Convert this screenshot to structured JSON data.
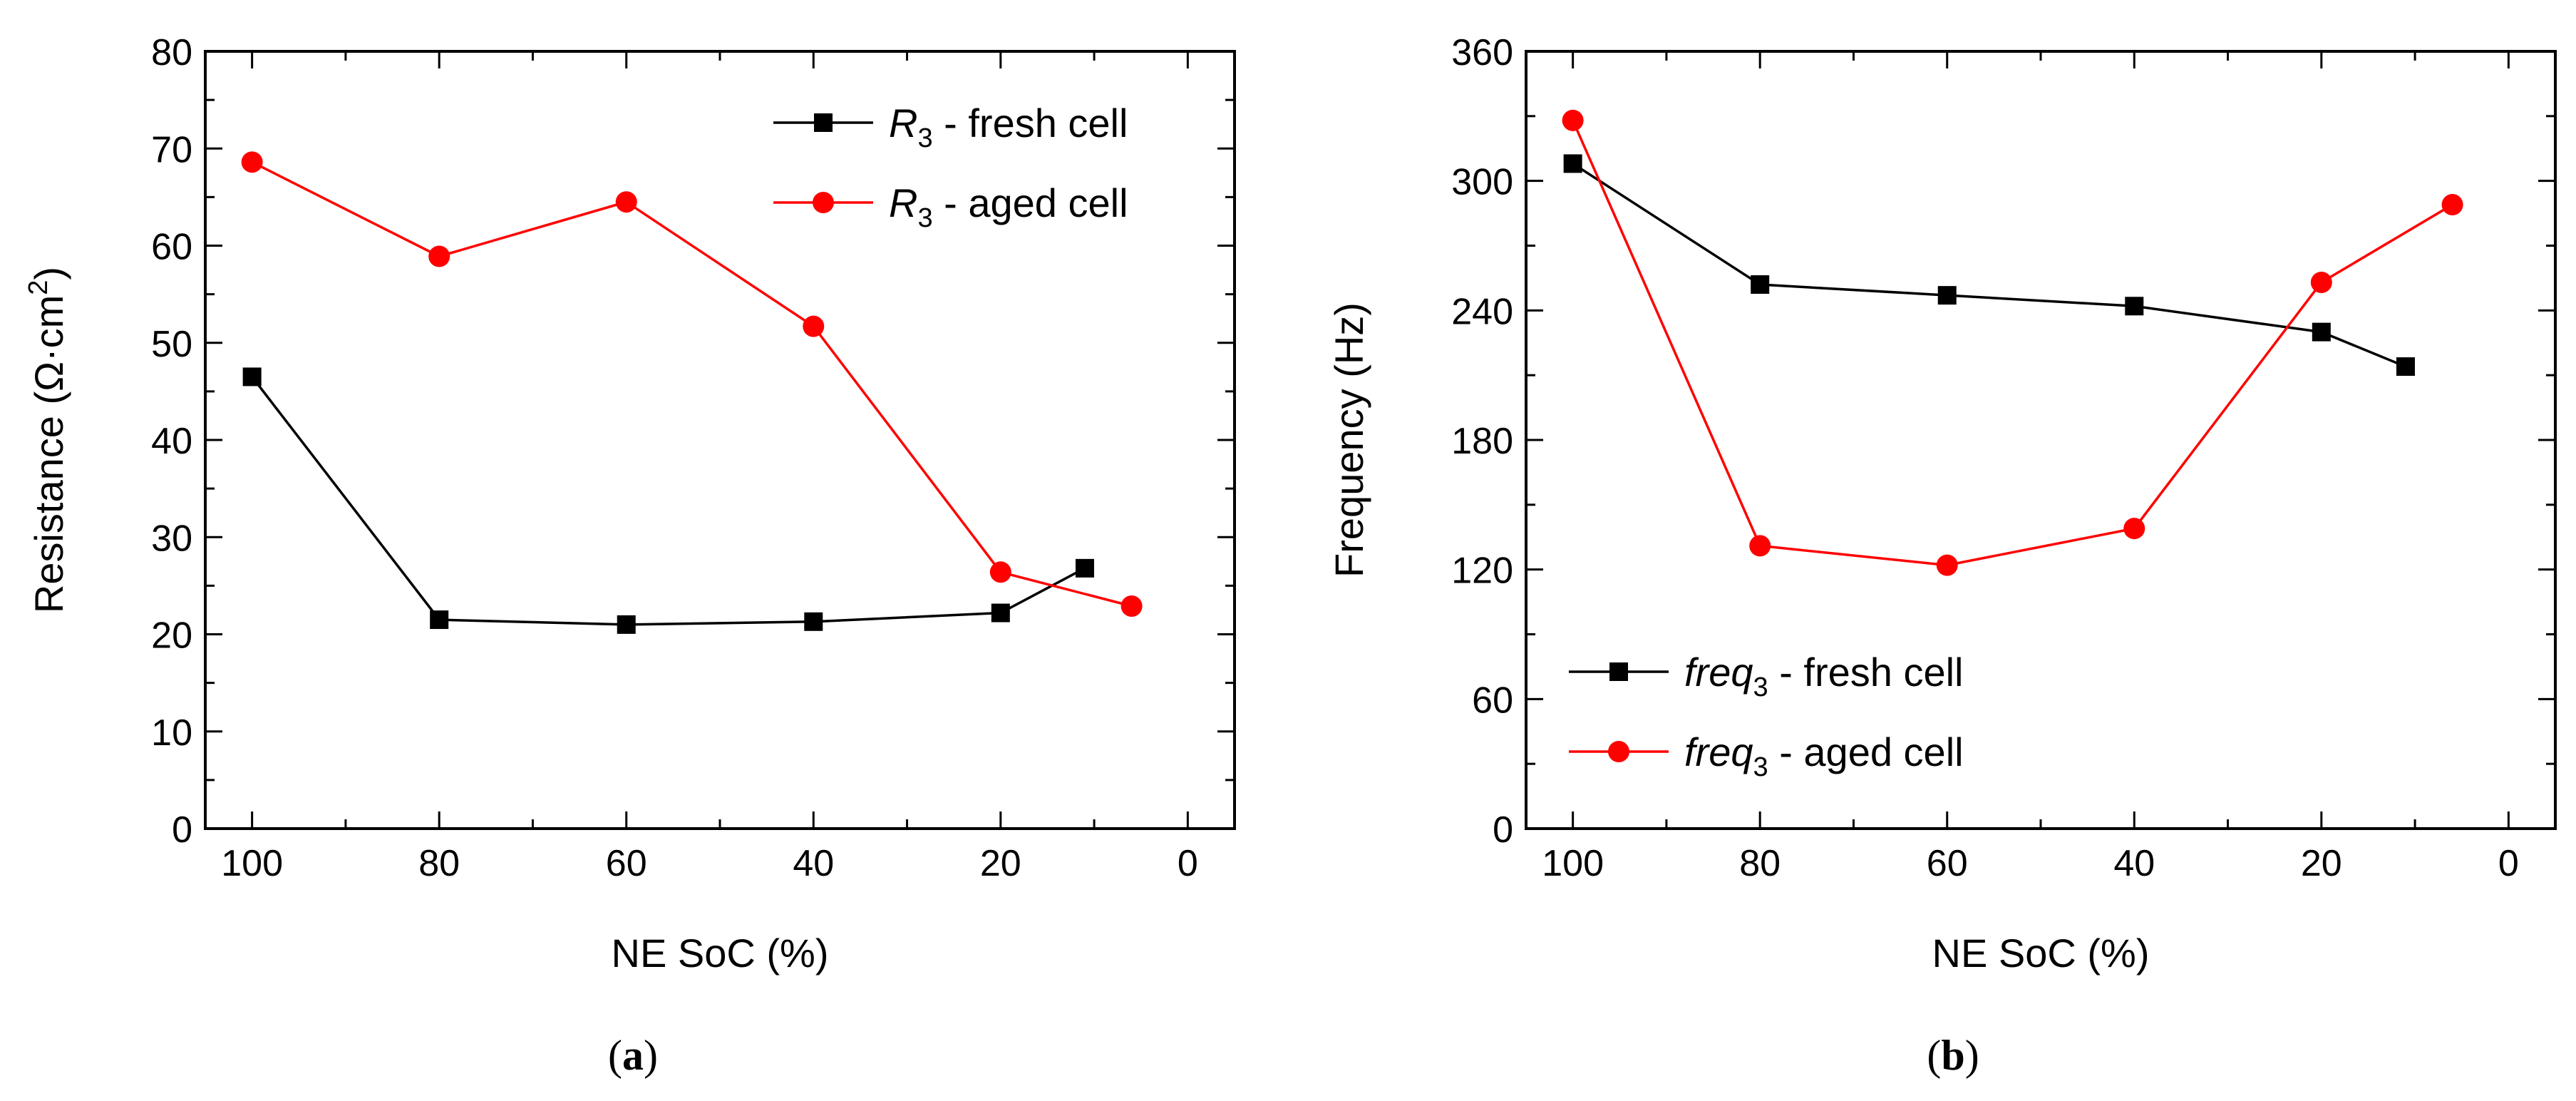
{
  "chart_data": [
    {
      "type": "line",
      "xlabel": "NE SoC (%)",
      "ylabel": "Resistance (Ω·cm",
      "ylabel_superscript": "2",
      "ylabel_close": ")",
      "xlim": [
        105,
        -5
      ],
      "ylim": [
        0,
        80
      ],
      "x_ticks": [
        100,
        80,
        60,
        40,
        20,
        0
      ],
      "x_tick_labels": [
        "100",
        "80",
        "60",
        "40",
        "20",
        "0"
      ],
      "y_ticks": [
        0,
        10,
        20,
        30,
        40,
        50,
        60,
        70,
        80
      ],
      "y_tick_labels": [
        "0",
        "10",
        "20",
        "30",
        "40",
        "50",
        "60",
        "70",
        "80"
      ],
      "legend_position": "top-right",
      "subfigure_label": {
        "open": "(",
        "letter": "a",
        "close": ")"
      },
      "series": [
        {
          "name_main": "R",
          "name_sub": "3",
          "name_rest": " - fresh cell",
          "color": "#000000",
          "marker": "square",
          "x": [
            100,
            80,
            60,
            40,
            20,
            11
          ],
          "y": [
            46.5,
            21.5,
            21.0,
            21.3,
            22.2,
            26.8
          ]
        },
        {
          "name_main": "R",
          "name_sub": "3",
          "name_rest": " - aged cell",
          "color": "#ff0000",
          "marker": "circle",
          "x": [
            100,
            80,
            60,
            40,
            20,
            6
          ],
          "y": [
            68.6,
            58.9,
            64.5,
            51.7,
            26.4,
            22.9
          ]
        }
      ]
    },
    {
      "type": "line",
      "xlabel": "NE SoC (%)",
      "ylabel": "Frequency (Hz)",
      "xlim": [
        105,
        -5
      ],
      "ylim": [
        0,
        360
      ],
      "x_ticks": [
        100,
        80,
        60,
        40,
        20,
        0
      ],
      "x_tick_labels": [
        "100",
        "80",
        "60",
        "40",
        "20",
        "0"
      ],
      "y_ticks": [
        0,
        60,
        120,
        180,
        240,
        300,
        360
      ],
      "y_tick_labels": [
        "0",
        "60",
        "120",
        "180",
        "240",
        "300",
        "360"
      ],
      "legend_position": "bottom-left",
      "subfigure_label": {
        "open": "(",
        "letter": "b",
        "close": ")"
      },
      "series": [
        {
          "name_main": "freq",
          "name_sub": "3",
          "name_rest": " - fresh cell",
          "color": "#000000",
          "marker": "square",
          "x": [
            100,
            80,
            60,
            40,
            20,
            11
          ],
          "y": [
            308,
            252,
            247,
            242,
            230,
            214
          ]
        },
        {
          "name_main": "freq",
          "name_sub": "3",
          "name_rest": " - aged cell",
          "color": "#ff0000",
          "marker": "circle",
          "x": [
            100,
            80,
            60,
            40,
            20,
            6
          ],
          "y": [
            328,
            131,
            122,
            139,
            253,
            289
          ]
        }
      ]
    }
  ]
}
